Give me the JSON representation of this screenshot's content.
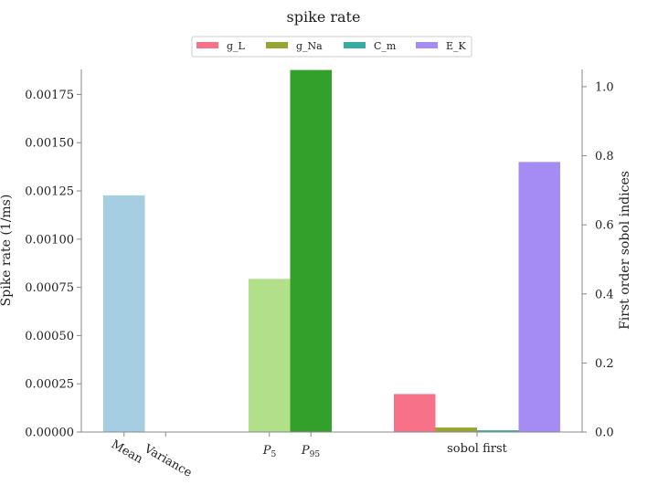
{
  "chart_data": {
    "type": "bar",
    "title": "spike rate",
    "left_axis": {
      "label": "Spike rate (1/ms)",
      "ylim": [
        0,
        0.00188
      ],
      "ticks": [
        "0.00000",
        "0.00025",
        "0.00050",
        "0.00075",
        "0.00100",
        "0.00125",
        "0.00150",
        "0.00175"
      ],
      "tick_values": [
        0,
        0.00025,
        0.0005,
        0.00075,
        0.001,
        0.00125,
        0.0015,
        0.00175
      ]
    },
    "right_axis": {
      "label": "First order sobol indices",
      "ylim": [
        0,
        1.05
      ],
      "ticks": [
        "0.0",
        "0.2",
        "0.4",
        "0.6",
        "0.8",
        "1.0"
      ],
      "tick_values": [
        0,
        0.2,
        0.4,
        0.6,
        0.8,
        1.0
      ]
    },
    "statistics_bars": [
      {
        "label": "Mean",
        "value": 0.001227,
        "color": "#a6cee3"
      },
      {
        "label": "Variance",
        "value": 0.0,
        "color": "#1f78b4"
      },
      {
        "label": "P",
        "sub": "5",
        "value": 0.000794,
        "color": "#b2df8a"
      },
      {
        "label": "P",
        "sub": "95",
        "value": 0.001877,
        "color": "#33a02c"
      }
    ],
    "sobol_group_label": "sobol first",
    "legend_placement": "top-center",
    "series": [
      {
        "name": "g_L",
        "value": 0.11,
        "color": "#f77189"
      },
      {
        "name": "g_Na",
        "value": 0.013,
        "color": "#97a431"
      },
      {
        "name": "C_m",
        "value": 0.005,
        "color": "#36ada4"
      },
      {
        "name": "E_K",
        "value": 0.782,
        "color": "#a48cf4"
      }
    ]
  }
}
